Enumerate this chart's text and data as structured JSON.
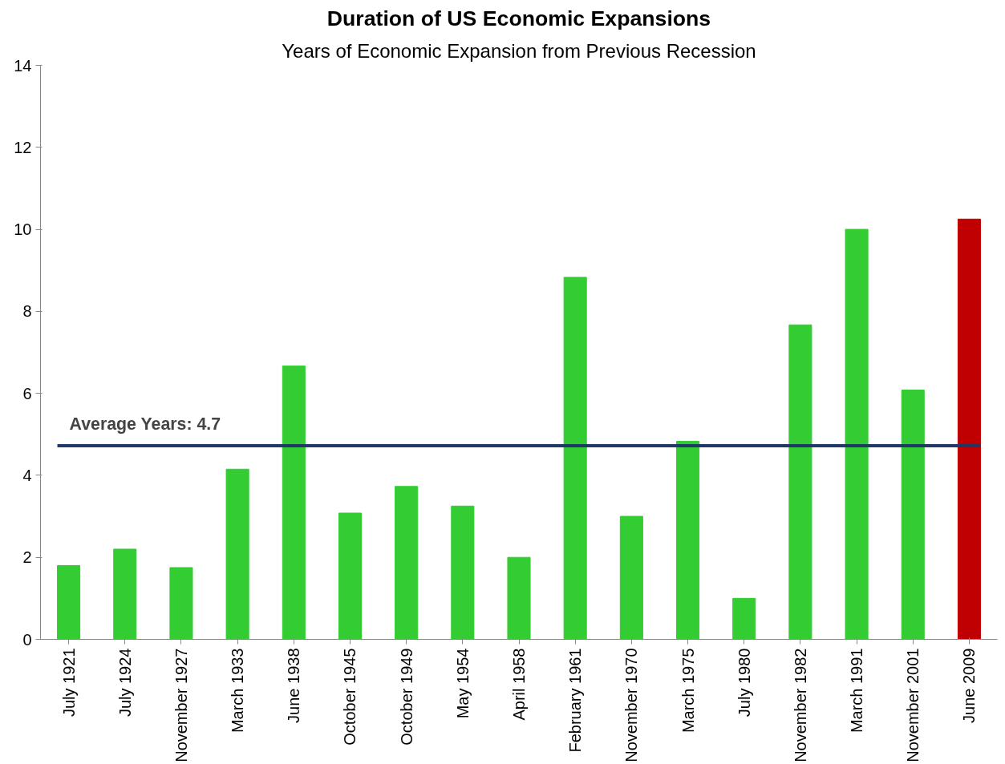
{
  "chart_data": {
    "type": "bar",
    "title": "Duration of US Economic Expansions",
    "subtitle": "Years of Economic Expansion from Previous Recession",
    "categories": [
      "July 1921",
      "July 1924",
      "November 1927",
      "March 1933",
      "June 1938",
      "October 1945",
      "October 1949",
      "May 1954",
      "April 1958",
      "February 1961",
      "November 1970",
      "March 1975",
      "July 1980",
      "November 1982",
      "March 1991",
      "November 2001",
      "June 2009"
    ],
    "values": [
      1.8,
      2.2,
      1.75,
      4.15,
      6.67,
      3.08,
      3.73,
      3.25,
      2.0,
      8.83,
      3.0,
      4.83,
      1.0,
      7.67,
      10.0,
      6.08,
      10.25
    ],
    "colors": [
      "#33cc33",
      "#33cc33",
      "#33cc33",
      "#33cc33",
      "#33cc33",
      "#33cc33",
      "#33cc33",
      "#33cc33",
      "#33cc33",
      "#33cc33",
      "#33cc33",
      "#33cc33",
      "#33cc33",
      "#33cc33",
      "#33cc33",
      "#33cc33",
      "#c00000"
    ],
    "ylim": [
      0,
      14
    ],
    "yticks": [
      0,
      2,
      4,
      6,
      8,
      10,
      12,
      14
    ],
    "grid": false,
    "ref_lines": [
      {
        "axis": "y",
        "value": 4.72,
        "label": "Average Years: 4.7",
        "color": "#1f3864"
      }
    ]
  }
}
